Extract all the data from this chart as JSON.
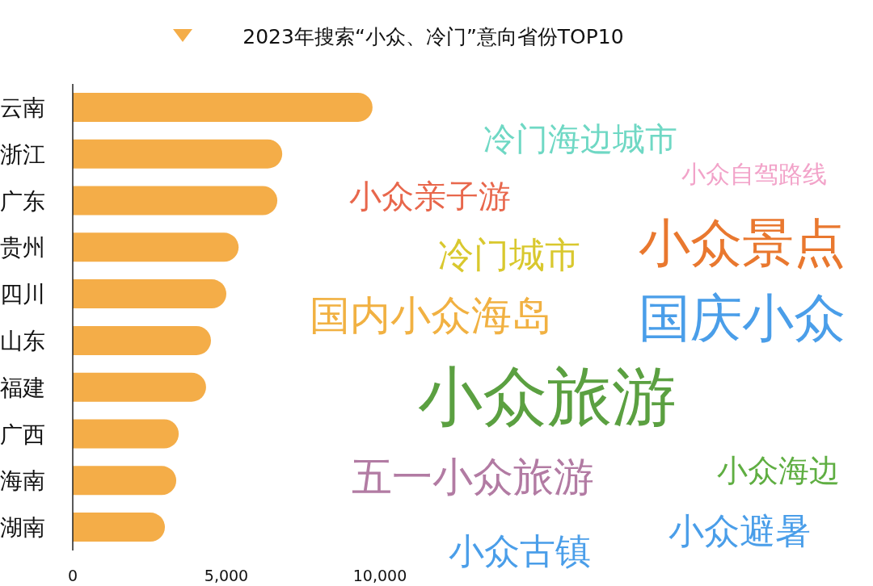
{
  "chart_data": [
    {
      "type": "bar",
      "orientation": "horizontal",
      "title": "2023年搜索“小众、冷门”意向省份TOP10",
      "categories": [
        "云南",
        "浙江",
        "广东",
        "贵州",
        "四川",
        "山东",
        "福建",
        "广西",
        "海南",
        "湖南"
      ],
      "values": [
        9760,
        6820,
        6660,
        5400,
        5000,
        4500,
        4340,
        3450,
        3370,
        3000
      ],
      "color": "#f4ad48",
      "xlim": [
        0,
        10000
      ],
      "xticks": [
        0,
        {
          "value": 5000,
          "label": "5,000"
        },
        {
          "value": 10000,
          "label": "10,000"
        }
      ],
      "grid": false
    },
    {
      "type": "other",
      "annotations": [
        "冷门海边城市",
        "小众自驾路线",
        "小众亲子游",
        "小众景点",
        "冷门城市",
        "国内小众海岛",
        "国庆小众",
        "小众旅游",
        "五一小众旅游",
        "小众海边",
        "小众避暑",
        "小众古镇"
      ],
      "colors": [
        "#6fd8c4",
        "#f2a3c9",
        "#e8674c",
        "#e9782f",
        "#d9c82e",
        "#f1b142",
        "#4a9ee9",
        "#5ba041",
        "#b27ba3",
        "#5fae42",
        "#4a9ee9",
        "#4a9ee9"
      ]
    }
  ]
}
